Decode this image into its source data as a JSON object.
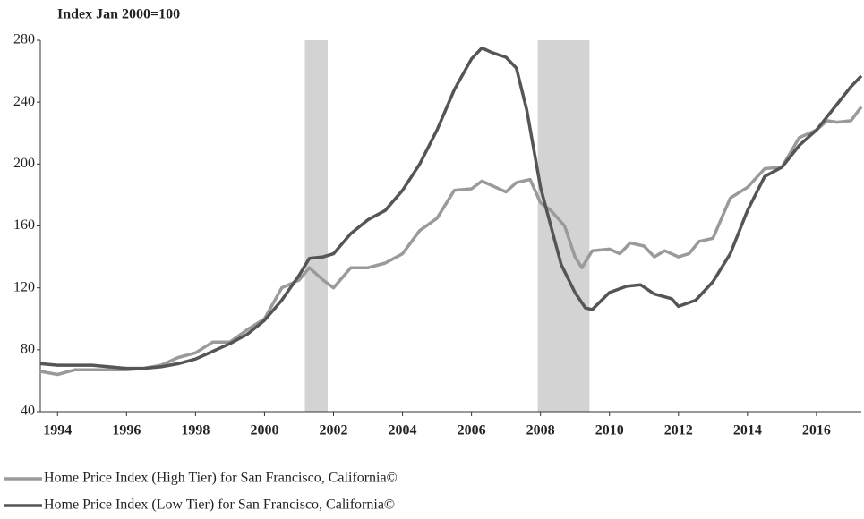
{
  "chart_data": {
    "type": "line",
    "title": "Index Jan 2000=100",
    "xlim": [
      1993.5,
      2017.3
    ],
    "xticks": [
      1994,
      1996,
      1998,
      2000,
      2002,
      2004,
      2006,
      2008,
      2010,
      2012,
      2014,
      2016
    ],
    "ylim": [
      40,
      280
    ],
    "yticks": [
      40,
      80,
      120,
      160,
      200,
      240,
      280
    ],
    "grid": false,
    "recessions": [
      [
        2001.17,
        2001.83
      ],
      [
        2007.92,
        2009.42
      ]
    ],
    "recession_color": "#d3d3d3",
    "legend": "bottom",
    "series": [
      {
        "name": "Home Price Index (High Tier) for San Francisco, California©",
        "color": "#9a9a9a",
        "x": [
          1993.5,
          1994,
          1994.5,
          1995,
          1995.5,
          1996,
          1996.5,
          1997,
          1997.5,
          1998,
          1998.5,
          1999,
          1999.5,
          2000,
          2000.5,
          2001,
          2001.3,
          2001.7,
          2002,
          2002.5,
          2003,
          2003.5,
          2004,
          2004.5,
          2005,
          2005.5,
          2006,
          2006.3,
          2006.7,
          2007,
          2007.3,
          2007.7,
          2008,
          2008.3,
          2008.7,
          2009,
          2009.2,
          2009.5,
          2010,
          2010.3,
          2010.6,
          2011,
          2011.3,
          2011.6,
          2012,
          2012.3,
          2012.6,
          2013,
          2013.5,
          2014,
          2014.5,
          2015,
          2015.5,
          2016,
          2016.3,
          2016.6,
          2017,
          2017.3
        ],
        "values": [
          66,
          64,
          67,
          67,
          67,
          67,
          68,
          70,
          75,
          78,
          85,
          85,
          93,
          100,
          120,
          125,
          133,
          125,
          120,
          133,
          133,
          136,
          142,
          157,
          165,
          183,
          184,
          189,
          185,
          182,
          188,
          190,
          175,
          170,
          160,
          140,
          133,
          144,
          145,
          142,
          149,
          147,
          140,
          144,
          140,
          142,
          150,
          152,
          178,
          185,
          197,
          198,
          217,
          222,
          228,
          227,
          228,
          237
        ]
      },
      {
        "name": "Home Price Index (Low Tier) for San Francisco, California©",
        "color": "#555555",
        "x": [
          1993.5,
          1994,
          1994.5,
          1995,
          1995.5,
          1996,
          1996.5,
          1997,
          1997.5,
          1998,
          1998.5,
          1999,
          1999.5,
          2000,
          2000.5,
          2001,
          2001.3,
          2001.7,
          2002,
          2002.5,
          2003,
          2003.5,
          2004,
          2004.5,
          2005,
          2005.5,
          2006,
          2006.3,
          2006.6,
          2007,
          2007.3,
          2007.6,
          2008,
          2008.3,
          2008.6,
          2009,
          2009.3,
          2009.5,
          2010,
          2010.5,
          2010.9,
          2011.3,
          2011.8,
          2012,
          2012.5,
          2013,
          2013.5,
          2014,
          2014.5,
          2015,
          2015.5,
          2016,
          2016.5,
          2017,
          2017.3
        ],
        "values": [
          71,
          70,
          70,
          70,
          69,
          68,
          68,
          69,
          71,
          74,
          79,
          84,
          90,
          99,
          112,
          128,
          139,
          140,
          142,
          155,
          164,
          170,
          183,
          200,
          222,
          248,
          268,
          275,
          272,
          269,
          262,
          235,
          185,
          160,
          135,
          117,
          107,
          106,
          117,
          121,
          122,
          116,
          113,
          108,
          112,
          124,
          142,
          170,
          192,
          198,
          212,
          222,
          236,
          250,
          257
        ]
      }
    ]
  }
}
